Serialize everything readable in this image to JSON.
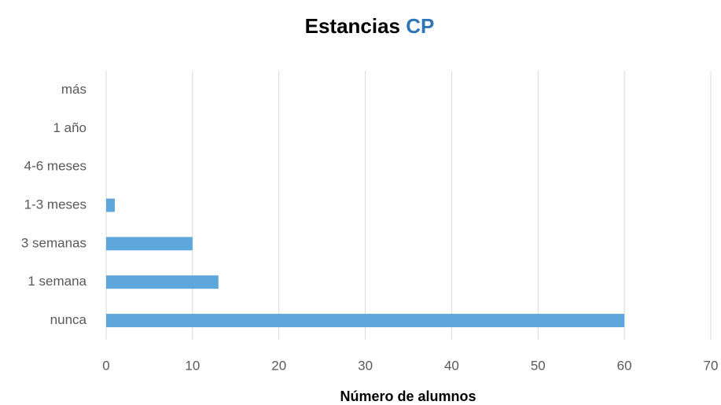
{
  "chart_data": {
    "type": "bar",
    "orientation": "horizontal",
    "title": "Estancias",
    "title_highlight": "CP",
    "title_highlight_color": "#2e75b6",
    "xlabel": "Número de alumnos",
    "categories": [
      "nunca",
      "1 semana",
      "3 semanas",
      "1-3 meses",
      "4-6 meses",
      "1 año",
      "más"
    ],
    "values": [
      60,
      13,
      10,
      1,
      0,
      0,
      0
    ],
    "color": "#5ea7dd",
    "xlim": [
      0,
      70
    ],
    "xticks": [
      0,
      10,
      20,
      30,
      40,
      50,
      60,
      70
    ],
    "grid": true
  }
}
